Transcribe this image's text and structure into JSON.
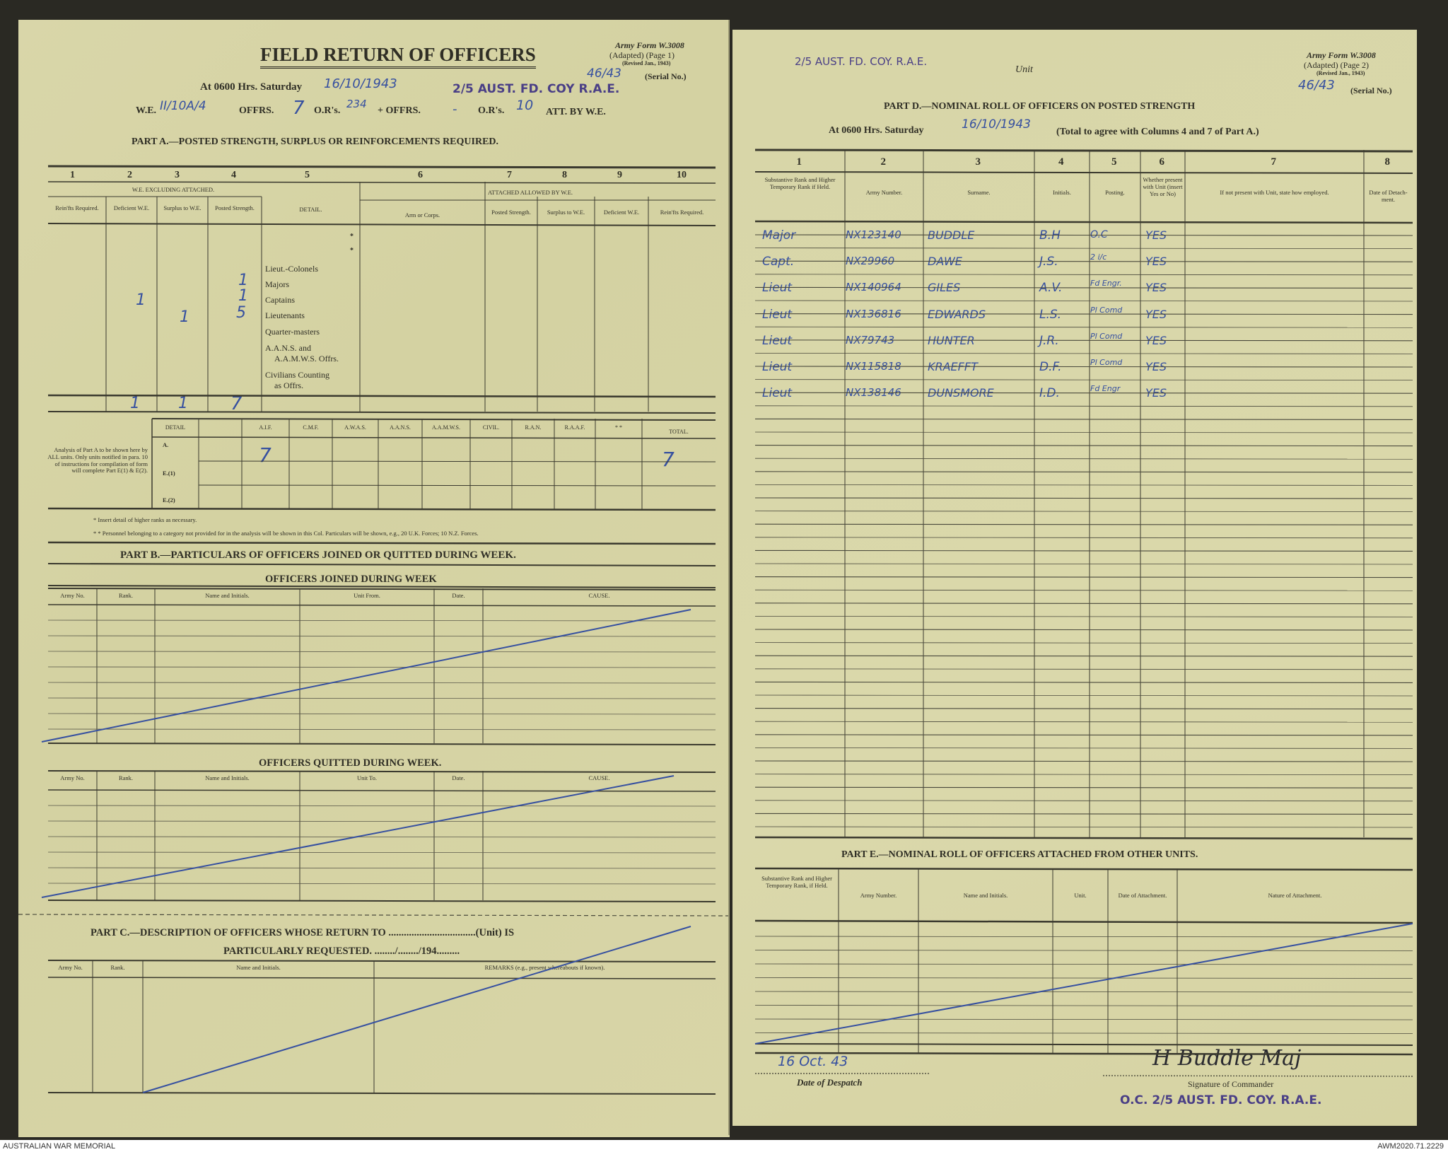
{
  "page1": {
    "title": "FIELD RETURN OF OFFICERS",
    "army_form": "Army Form W.3008",
    "adapted": "(Adapted) (Page 1)",
    "revised": "(Revised Jan., 1943)",
    "serial_value": "46/43",
    "serial_label": "(Serial No.)",
    "at_hrs": "At 0600 Hrs. Saturday",
    "date_value": "16/10/1943",
    "unit_stamp": "2/5 AUST. FD. COY R.A.E.",
    "we_label": "W.E.",
    "we_value": "II/10A/4",
    "offrs_label": "OFFRS.",
    "offrs_value": "7",
    "ors_label": "O.R's.",
    "ors_value": "234",
    "plus_offrs_label": "+ OFFRS.",
    "plus_offrs_value": "-",
    "ors2_label": "O.R's.",
    "ors2_value": "10",
    "att_label": "ATT. BY W.E.",
    "part_a_heading": "PART A.—POSTED STRENGTH, SURPLUS OR REINFORCEMENTS REQUIRED.",
    "part_a": {
      "col_numbers": [
        "1",
        "2",
        "3",
        "4",
        "5",
        "6",
        "7",
        "8",
        "9",
        "10"
      ],
      "group_excl": "W.E. EXCLUDING ATTACHED.",
      "group_att": "ATTACHED ALLOWED BY W.E.",
      "headers": [
        "Rein'fts Required.",
        "Deficient W.E.",
        "Surplus to W.E.",
        "Posted Strength.",
        "DETAIL.",
        "Arm or Corps.",
        "Posted Strength.",
        "Surplus to W.E.",
        "Deficient W.E.",
        "Rein'fts Required."
      ],
      "detail_rows": [
        "Lieut.-Colonels",
        "Majors",
        "Captains",
        "Lieutenants",
        "Quarter-masters",
        "A.A.N.S. and",
        "A.A.M.W.S. Offrs.",
        "Civilians Counting",
        "as Offrs."
      ],
      "asterisks": [
        "*",
        "*"
      ],
      "entries": {
        "majors_posted": "1",
        "captains_posted": "1",
        "lieutenants_posted": "5",
        "deficient": "1",
        "surplus": "1"
      },
      "totals": {
        "deficient": "1",
        "surplus": "1",
        "posted": "7"
      }
    },
    "analysis": {
      "note": "Analysis of Part A to be shown here by ALL units. Only units notified in para. 10 of instructions for compilation of form will complete Part E(1) & E(2).",
      "headers": [
        "DETAIL",
        "",
        "A.I.F.",
        "C.M.F.",
        "A.W.A.S.",
        "A.A.N.S.",
        "A.A.M.W.S.",
        "CIVIL.",
        "R.A.N.",
        "R.A.A.F.",
        "* *",
        "TOTAL."
      ],
      "rows": [
        "A.",
        "E.(1)",
        "E.(2)"
      ],
      "aif_a": "7",
      "total_a": "7",
      "footnote1": "* Insert detail of higher ranks as necessary.",
      "footnote2": "* * Personnel belonging to a category not provided for in the analysis will be shown in this Col. Particulars will be shown, e.g., 20 U.K. Forces; 10 N.Z. Forces."
    },
    "part_b_heading": "PART B.—PARTICULARS OF OFFICERS JOINED OR QUITTED DURING WEEK.",
    "joined_heading": "OFFICERS JOINED DURING WEEK",
    "joined_headers": [
      "Army No.",
      "Rank.",
      "Name and Initials.",
      "Unit From.",
      "Date.",
      "CAUSE."
    ],
    "quitted_heading": "OFFICERS QUITTED DURING WEEK.",
    "quitted_headers": [
      "Army No.",
      "Rank.",
      "Name and Initials.",
      "Unit To.",
      "Date.",
      "CAUSE."
    ],
    "part_c_heading": "PART C.—DESCRIPTION OF OFFICERS WHOSE RETURN TO ..................................(Unit) IS",
    "part_c_line2": "PARTICULARLY REQUESTED. ......../......../194.........",
    "part_c_headers": [
      "Army No.",
      "Rank.",
      "Name and Initials.",
      "REMARKS (e.g., present whereabouts if known)."
    ]
  },
  "page2": {
    "unit_value": "2/5 AUST. FD. COY. R.A.E.",
    "unit_label": "Unit",
    "army_form": "Army Form W.3008",
    "adapted": "(Adapted) (Page 2)",
    "revised": "(Revised Jan., 1943)",
    "serial_value": "46/43",
    "serial_label": "(Serial No.)",
    "part_d_heading": "PART D.—NOMINAL ROLL OF OFFICERS ON POSTED STRENGTH",
    "at_hrs": "At 0600 Hrs. Saturday",
    "date_value": "16/10/1943",
    "total_note": "(Total to agree with Columns 4 and 7 of Part A.)",
    "col_numbers": [
      "1",
      "2",
      "3",
      "4",
      "5",
      "6",
      "7",
      "8"
    ],
    "headers": [
      "Substantive Rank and Higher Temporary Rank if Held.",
      "Army Number.",
      "Surname.",
      "Initials.",
      "Posting.",
      "Whether present with Unit (insert Yes or No)",
      "If not present with Unit, state how employed.",
      "Date of Detach-ment."
    ],
    "roll": [
      {
        "rank": "Major",
        "number": "NX123140",
        "surname": "BUDDLE",
        "initials": "B.H",
        "posting": "O.C",
        "present": "YES"
      },
      {
        "rank": "Capt.",
        "number": "NX29960",
        "surname": "DAWE",
        "initials": "J.S.",
        "posting": "2 i/c",
        "present": "YES"
      },
      {
        "rank": "Lieut",
        "number": "NX140964",
        "surname": "GILES",
        "initials": "A.V.",
        "posting": "Fd Engr.",
        "present": "YES"
      },
      {
        "rank": "Lieut",
        "number": "NX136816",
        "surname": "EDWARDS",
        "initials": "L.S.",
        "posting": "Pl Comd",
        "present": "YES"
      },
      {
        "rank": "Lieut",
        "number": "NX79743",
        "surname": "HUNTER",
        "initials": "J.R.",
        "posting": "Pl Comd",
        "present": "YES"
      },
      {
        "rank": "Lieut",
        "number": "NX115818",
        "surname": "KRAEFFT",
        "initials": "D.F.",
        "posting": "Pl Comd",
        "present": "YES"
      },
      {
        "rank": "Lieut",
        "number": "NX138146",
        "surname": "DUNSMORE",
        "initials": "I.D.",
        "posting": "Fd Engr",
        "present": "YES"
      }
    ],
    "part_e_heading": "PART E.—NOMINAL ROLL OF OFFICERS ATTACHED FROM OTHER UNITS.",
    "part_e_headers": [
      "Substantive Rank and Higher Temporary Rank, if Held.",
      "Army Number.",
      "Name and Initials.",
      "Unit.",
      "Date of Attachment.",
      "Nature of Attachment."
    ],
    "despatch_date": "16 Oct. 43",
    "despatch_label": "Date of Despatch",
    "signature": "H Buddle Maj",
    "signature_label": "Signature of Commander",
    "oc_stamp": "O.C. 2/5 AUST. FD. COY. R.A.E."
  },
  "footer": {
    "left": "AUSTRALIAN WAR MEMORIAL",
    "right": "AWM2020.71.2229"
  },
  "colors": {
    "paper": "#d7d4a5",
    "ink": "#3650a0",
    "stamp": "#4a3f86",
    "print": "#2f2e25"
  }
}
